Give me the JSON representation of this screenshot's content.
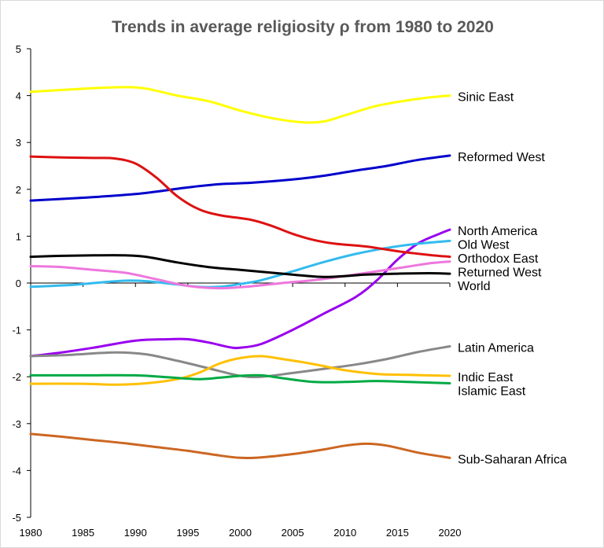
{
  "chart_data": {
    "type": "line",
    "title": "Trends in average religiosity ρ from 1980 to 2020",
    "xlabel": "",
    "ylabel": "",
    "xlim": [
      1980,
      2020
    ],
    "ylim": [
      -5,
      5
    ],
    "x_ticks": [
      "1980",
      "1985",
      "1990",
      "1995",
      "2000",
      "2005",
      "2010",
      "2015",
      "2020"
    ],
    "y_ticks": [
      "5",
      "4",
      "3",
      "2",
      "1",
      "0",
      "-1",
      "-2",
      "-3",
      "-4",
      "-5"
    ],
    "grid": false,
    "legend": "inline labels at line ends",
    "series": [
      {
        "name": "Sinic East",
        "color": "#ffff00",
        "points": [
          [
            1980,
            4.08
          ],
          [
            1983,
            4.12
          ],
          [
            1986,
            4.16
          ],
          [
            1989,
            4.18
          ],
          [
            1991,
            4.15
          ],
          [
            1994,
            4.0
          ],
          [
            1997,
            3.88
          ],
          [
            2000,
            3.68
          ],
          [
            2003,
            3.52
          ],
          [
            2006,
            3.43
          ],
          [
            2008,
            3.45
          ],
          [
            2010,
            3.58
          ],
          [
            2013,
            3.78
          ],
          [
            2016,
            3.9
          ],
          [
            2018,
            3.96
          ],
          [
            2020,
            4.0
          ]
        ]
      },
      {
        "name": "Reformed West",
        "color": "#0000cc",
        "points": [
          [
            1980,
            1.76
          ],
          [
            1985,
            1.82
          ],
          [
            1990,
            1.9
          ],
          [
            1995,
            2.04
          ],
          [
            1998,
            2.11
          ],
          [
            2001,
            2.14
          ],
          [
            2005,
            2.21
          ],
          [
            2008,
            2.29
          ],
          [
            2011,
            2.4
          ],
          [
            2014,
            2.5
          ],
          [
            2017,
            2.63
          ],
          [
            2020,
            2.72
          ]
        ]
      },
      {
        "name": "North America",
        "color": "#9900ee",
        "points": [
          [
            1980,
            -1.56
          ],
          [
            1983,
            -1.48
          ],
          [
            1986,
            -1.38
          ],
          [
            1990,
            -1.23
          ],
          [
            1993,
            -1.2
          ],
          [
            1995,
            -1.2
          ],
          [
            1997,
            -1.27
          ],
          [
            1999,
            -1.37
          ],
          [
            2000,
            -1.38
          ],
          [
            2002,
            -1.3
          ],
          [
            2005,
            -1.0
          ],
          [
            2008,
            -0.65
          ],
          [
            2011,
            -0.3
          ],
          [
            2013,
            0.05
          ],
          [
            2015,
            0.5
          ],
          [
            2017,
            0.85
          ],
          [
            2019,
            1.05
          ],
          [
            2020,
            1.14
          ]
        ]
      },
      {
        "name": "Old West",
        "color": "#33bbee",
        "points": [
          [
            1980,
            -0.08
          ],
          [
            1984,
            -0.04
          ],
          [
            1986,
            0.0
          ],
          [
            1989,
            0.05
          ],
          [
            1991,
            0.04
          ],
          [
            1994,
            -0.03
          ],
          [
            1996,
            -0.08
          ],
          [
            1998,
            -0.08
          ],
          [
            2000,
            -0.02
          ],
          [
            2002,
            0.06
          ],
          [
            2005,
            0.25
          ],
          [
            2008,
            0.45
          ],
          [
            2011,
            0.62
          ],
          [
            2014,
            0.75
          ],
          [
            2017,
            0.84
          ],
          [
            2020,
            0.9
          ]
        ]
      },
      {
        "name": "Orthodox East",
        "color": "#dd1111",
        "points": [
          [
            1980,
            2.7
          ],
          [
            1983,
            2.68
          ],
          [
            1986,
            2.67
          ],
          [
            1988,
            2.66
          ],
          [
            1990,
            2.55
          ],
          [
            1992,
            2.25
          ],
          [
            1994,
            1.85
          ],
          [
            1996,
            1.58
          ],
          [
            1998,
            1.45
          ],
          [
            2001,
            1.35
          ],
          [
            2003,
            1.22
          ],
          [
            2005,
            1.05
          ],
          [
            2007,
            0.92
          ],
          [
            2009,
            0.84
          ],
          [
            2012,
            0.78
          ],
          [
            2015,
            0.68
          ],
          [
            2018,
            0.6
          ],
          [
            2020,
            0.56
          ]
        ]
      },
      {
        "name": "Returned West",
        "color": "#ee77dd",
        "points": [
          [
            1980,
            0.36
          ],
          [
            1983,
            0.34
          ],
          [
            1986,
            0.28
          ],
          [
            1989,
            0.22
          ],
          [
            1992,
            0.08
          ],
          [
            1995,
            -0.06
          ],
          [
            1998,
            -0.11
          ],
          [
            2001,
            -0.07
          ],
          [
            2004,
            0.0
          ],
          [
            2007,
            0.06
          ],
          [
            2010,
            0.15
          ],
          [
            2013,
            0.25
          ],
          [
            2016,
            0.35
          ],
          [
            2018,
            0.42
          ],
          [
            2020,
            0.46
          ]
        ]
      },
      {
        "name": "World",
        "color": "#000000",
        "points": [
          [
            1980,
            0.56
          ],
          [
            1983,
            0.58
          ],
          [
            1986,
            0.59
          ],
          [
            1989,
            0.59
          ],
          [
            1991,
            0.56
          ],
          [
            1994,
            0.44
          ],
          [
            1997,
            0.34
          ],
          [
            2000,
            0.28
          ],
          [
            2003,
            0.22
          ],
          [
            2006,
            0.16
          ],
          [
            2008,
            0.13
          ],
          [
            2010,
            0.15
          ],
          [
            2012,
            0.18
          ],
          [
            2015,
            0.2
          ],
          [
            2018,
            0.21
          ],
          [
            2020,
            0.2
          ]
        ]
      },
      {
        "name": "Latin America",
        "color": "#888888",
        "points": [
          [
            1980,
            -1.56
          ],
          [
            1984,
            -1.53
          ],
          [
            1988,
            -1.48
          ],
          [
            1991,
            -1.52
          ],
          [
            1994,
            -1.66
          ],
          [
            1997,
            -1.82
          ],
          [
            2000,
            -1.98
          ],
          [
            2002,
            -2.0
          ],
          [
            2005,
            -1.92
          ],
          [
            2008,
            -1.83
          ],
          [
            2011,
            -1.74
          ],
          [
            2014,
            -1.62
          ],
          [
            2017,
            -1.47
          ],
          [
            2020,
            -1.35
          ]
        ]
      },
      {
        "name": "Indic East",
        "color": "#ffc000",
        "points": [
          [
            1980,
            -2.15
          ],
          [
            1985,
            -2.15
          ],
          [
            1988,
            -2.17
          ],
          [
            1991,
            -2.14
          ],
          [
            1994,
            -2.05
          ],
          [
            1996,
            -1.92
          ],
          [
            1998,
            -1.72
          ],
          [
            2000,
            -1.6
          ],
          [
            2002,
            -1.56
          ],
          [
            2004,
            -1.62
          ],
          [
            2007,
            -1.73
          ],
          [
            2010,
            -1.86
          ],
          [
            2013,
            -1.94
          ],
          [
            2016,
            -1.96
          ],
          [
            2020,
            -1.98
          ]
        ]
      },
      {
        "name": "Islamic East",
        "color": "#00aa44",
        "points": [
          [
            1980,
            -1.97
          ],
          [
            1985,
            -1.97
          ],
          [
            1990,
            -1.97
          ],
          [
            1993,
            -2.01
          ],
          [
            1996,
            -2.05
          ],
          [
            1998,
            -2.02
          ],
          [
            2000,
            -1.98
          ],
          [
            2002,
            -1.97
          ],
          [
            2004,
            -2.03
          ],
          [
            2007,
            -2.11
          ],
          [
            2010,
            -2.11
          ],
          [
            2013,
            -2.09
          ],
          [
            2016,
            -2.11
          ],
          [
            2020,
            -2.14
          ]
        ]
      },
      {
        "name": "Sub-Saharan Africa",
        "color": "#cc6622",
        "points": [
          [
            1980,
            -3.22
          ],
          [
            1983,
            -3.28
          ],
          [
            1986,
            -3.35
          ],
          [
            1989,
            -3.42
          ],
          [
            1992,
            -3.5
          ],
          [
            1995,
            -3.58
          ],
          [
            1998,
            -3.68
          ],
          [
            2000,
            -3.73
          ],
          [
            2002,
            -3.72
          ],
          [
            2005,
            -3.65
          ],
          [
            2008,
            -3.55
          ],
          [
            2010,
            -3.47
          ],
          [
            2012,
            -3.43
          ],
          [
            2014,
            -3.47
          ],
          [
            2017,
            -3.62
          ],
          [
            2020,
            -3.73
          ]
        ]
      }
    ]
  }
}
